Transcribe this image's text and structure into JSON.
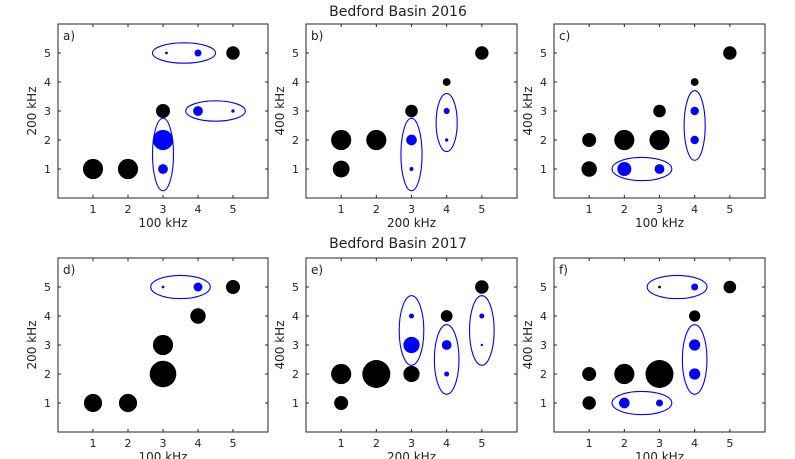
{
  "figure": {
    "titles": [
      "Bedford Basin 2016",
      "Bedford Basin 2017"
    ]
  },
  "chart_data": [
    {
      "type": "scatter",
      "panel": "a)",
      "title": "Bedford Basin 2016",
      "xlabel": "100 kHz",
      "ylabel": "200 kHz",
      "xlim": [
        0,
        6
      ],
      "ylim": [
        0,
        6
      ],
      "xticks": [
        1,
        2,
        3,
        4,
        5
      ],
      "yticks": [
        1,
        2,
        3,
        4,
        5
      ],
      "grid": false,
      "points": [
        {
          "x": 1,
          "y": 1,
          "size": 0.72,
          "color": "#000000"
        },
        {
          "x": 2,
          "y": 1,
          "size": 0.72,
          "color": "#000000"
        },
        {
          "x": 3,
          "y": 3,
          "size": 0.5,
          "color": "#000000"
        },
        {
          "x": 3,
          "y": 2,
          "size": 0.72,
          "color": "#0000ff"
        },
        {
          "x": 3,
          "y": 1,
          "size": 0.35,
          "color": "#0000ff"
        },
        {
          "x": 3.1,
          "y": 5,
          "size": 0.1,
          "color": "#0000ff"
        },
        {
          "x": 4,
          "y": 5,
          "size": 0.25,
          "color": "#0000ff"
        },
        {
          "x": 5,
          "y": 5,
          "size": 0.48,
          "color": "#000000"
        },
        {
          "x": 4,
          "y": 3,
          "size": 0.35,
          "color": "#0000ff"
        },
        {
          "x": 5,
          "y": 3,
          "size": 0.12,
          "color": "#0000ff"
        }
      ],
      "ellipses": [
        {
          "cx": 3,
          "cy": 1.5,
          "rx": 0.3,
          "ry": 1.25
        },
        {
          "cx": 3.6,
          "cy": 5,
          "rx": 0.9,
          "ry": 0.35
        },
        {
          "cx": 4.5,
          "cy": 3,
          "rx": 0.85,
          "ry": 0.35
        }
      ]
    },
    {
      "type": "scatter",
      "panel": "b)",
      "xlabel": "200 kHz",
      "ylabel": "400 kHz",
      "xlim": [
        0,
        6
      ],
      "ylim": [
        0,
        6
      ],
      "xticks": [
        1,
        2,
        3,
        4,
        5
      ],
      "yticks": [
        1,
        2,
        3,
        4,
        5
      ],
      "grid": false,
      "points": [
        {
          "x": 1,
          "y": 2,
          "size": 0.72,
          "color": "#000000"
        },
        {
          "x": 1,
          "y": 1,
          "size": 0.6,
          "color": "#000000"
        },
        {
          "x": 2,
          "y": 2,
          "size": 0.72,
          "color": "#000000"
        },
        {
          "x": 3,
          "y": 3,
          "size": 0.45,
          "color": "#000000"
        },
        {
          "x": 3,
          "y": 2,
          "size": 0.38,
          "color": "#0000ff"
        },
        {
          "x": 3,
          "y": 1,
          "size": 0.14,
          "color": "#0000ff"
        },
        {
          "x": 4,
          "y": 4,
          "size": 0.28,
          "color": "#000000"
        },
        {
          "x": 4,
          "y": 3,
          "size": 0.22,
          "color": "#0000ff"
        },
        {
          "x": 4,
          "y": 2,
          "size": 0.12,
          "color": "#0000ff"
        },
        {
          "x": 5,
          "y": 5,
          "size": 0.48,
          "color": "#000000"
        }
      ],
      "ellipses": [
        {
          "cx": 3,
          "cy": 1.5,
          "rx": 0.3,
          "ry": 1.25
        },
        {
          "cx": 4,
          "cy": 2.6,
          "rx": 0.3,
          "ry": 1.0
        }
      ]
    },
    {
      "type": "scatter",
      "panel": "c)",
      "xlabel": "100 kHz",
      "ylabel": "400 kHz",
      "xlim": [
        0,
        6
      ],
      "ylim": [
        0,
        6
      ],
      "xticks": [
        1,
        2,
        3,
        4,
        5
      ],
      "yticks": [
        1,
        2,
        3,
        4,
        5
      ],
      "grid": false,
      "points": [
        {
          "x": 1,
          "y": 2,
          "size": 0.5,
          "color": "#000000"
        },
        {
          "x": 1,
          "y": 1,
          "size": 0.55,
          "color": "#000000"
        },
        {
          "x": 2,
          "y": 2,
          "size": 0.72,
          "color": "#000000"
        },
        {
          "x": 2,
          "y": 1,
          "size": 0.5,
          "color": "#0000ff"
        },
        {
          "x": 3,
          "y": 3,
          "size": 0.45,
          "color": "#000000"
        },
        {
          "x": 3,
          "y": 2,
          "size": 0.72,
          "color": "#000000"
        },
        {
          "x": 3,
          "y": 1,
          "size": 0.35,
          "color": "#0000ff"
        },
        {
          "x": 4,
          "y": 4,
          "size": 0.28,
          "color": "#000000"
        },
        {
          "x": 4,
          "y": 3,
          "size": 0.3,
          "color": "#0000ff"
        },
        {
          "x": 4,
          "y": 2,
          "size": 0.3,
          "color": "#0000ff"
        },
        {
          "x": 5,
          "y": 5,
          "size": 0.48,
          "color": "#000000"
        }
      ],
      "ellipses": [
        {
          "cx": 2.5,
          "cy": 1,
          "rx": 0.85,
          "ry": 0.4
        },
        {
          "cx": 4,
          "cy": 2.5,
          "rx": 0.3,
          "ry": 1.2
        }
      ]
    },
    {
      "type": "scatter",
      "panel": "d)",
      "title": "Bedford Basin 2017",
      "xlabel": "100 kHz",
      "ylabel": "200 kHz",
      "xlim": [
        0,
        6
      ],
      "ylim": [
        0,
        6
      ],
      "xticks": [
        1,
        2,
        3,
        4,
        5
      ],
      "yticks": [
        1,
        2,
        3,
        4,
        5
      ],
      "grid": false,
      "points": [
        {
          "x": 1,
          "y": 1,
          "size": 0.65,
          "color": "#000000"
        },
        {
          "x": 2,
          "y": 1,
          "size": 0.65,
          "color": "#000000"
        },
        {
          "x": 3,
          "y": 3,
          "size": 0.72,
          "color": "#000000"
        },
        {
          "x": 3,
          "y": 2,
          "size": 0.95,
          "color": "#000000"
        },
        {
          "x": 4,
          "y": 4,
          "size": 0.55,
          "color": "#000000"
        },
        {
          "x": 3,
          "y": 5,
          "size": 0.1,
          "color": "#0000ff"
        },
        {
          "x": 4,
          "y": 5,
          "size": 0.32,
          "color": "#0000ff"
        },
        {
          "x": 5,
          "y": 5,
          "size": 0.5,
          "color": "#000000"
        }
      ],
      "ellipses": [
        {
          "cx": 3.5,
          "cy": 5,
          "rx": 0.85,
          "ry": 0.4
        }
      ]
    },
    {
      "type": "scatter",
      "panel": "e)",
      "xlabel": "200 kHz",
      "ylabel": "400 kHz",
      "xlim": [
        0,
        6
      ],
      "ylim": [
        0,
        6
      ],
      "xticks": [
        1,
        2,
        3,
        4,
        5
      ],
      "yticks": [
        1,
        2,
        3,
        4,
        5
      ],
      "grid": false,
      "points": [
        {
          "x": 1,
          "y": 2,
          "size": 0.72,
          "color": "#000000"
        },
        {
          "x": 1,
          "y": 1,
          "size": 0.5,
          "color": "#000000"
        },
        {
          "x": 2,
          "y": 2,
          "size": 1.0,
          "color": "#000000"
        },
        {
          "x": 3,
          "y": 2,
          "size": 0.58,
          "color": "#000000"
        },
        {
          "x": 3,
          "y": 4,
          "size": 0.18,
          "color": "#0000ff"
        },
        {
          "x": 3,
          "y": 3,
          "size": 0.58,
          "color": "#0000ff"
        },
        {
          "x": 4,
          "y": 4,
          "size": 0.42,
          "color": "#000000"
        },
        {
          "x": 4,
          "y": 3,
          "size": 0.35,
          "color": "#0000ff"
        },
        {
          "x": 4,
          "y": 2,
          "size": 0.18,
          "color": "#0000ff"
        },
        {
          "x": 5,
          "y": 5,
          "size": 0.48,
          "color": "#000000"
        },
        {
          "x": 5,
          "y": 4,
          "size": 0.18,
          "color": "#0000ff"
        },
        {
          "x": 5,
          "y": 3,
          "size": 0.08,
          "color": "#0000ff"
        }
      ],
      "ellipses": [
        {
          "cx": 3,
          "cy": 3.5,
          "rx": 0.35,
          "ry": 1.2
        },
        {
          "cx": 4,
          "cy": 2.5,
          "rx": 0.35,
          "ry": 1.2
        },
        {
          "cx": 5,
          "cy": 3.5,
          "rx": 0.35,
          "ry": 1.2
        }
      ]
    },
    {
      "type": "scatter",
      "panel": "f)",
      "xlabel": "100 kHz",
      "ylabel": "400 kHz",
      "xlim": [
        0,
        6
      ],
      "ylim": [
        0,
        6
      ],
      "xticks": [
        1,
        2,
        3,
        4,
        5
      ],
      "yticks": [
        1,
        2,
        3,
        4,
        5
      ],
      "grid": false,
      "points": [
        {
          "x": 1,
          "y": 2,
          "size": 0.5,
          "color": "#000000"
        },
        {
          "x": 1,
          "y": 1,
          "size": 0.48,
          "color": "#000000"
        },
        {
          "x": 2,
          "y": 2,
          "size": 0.72,
          "color": "#000000"
        },
        {
          "x": 2,
          "y": 1,
          "size": 0.38,
          "color": "#0000ff"
        },
        {
          "x": 3,
          "y": 2,
          "size": 1.0,
          "color": "#000000"
        },
        {
          "x": 3,
          "y": 1,
          "size": 0.25,
          "color": "#0000ff"
        },
        {
          "x": 3,
          "y": 5,
          "size": 0.1,
          "color": "#000000"
        },
        {
          "x": 4,
          "y": 5,
          "size": 0.25,
          "color": "#0000ff"
        },
        {
          "x": 5,
          "y": 5,
          "size": 0.45,
          "color": "#000000"
        },
        {
          "x": 4,
          "y": 4,
          "size": 0.4,
          "color": "#000000"
        },
        {
          "x": 4,
          "y": 3,
          "size": 0.4,
          "color": "#0000ff"
        },
        {
          "x": 4,
          "y": 2,
          "size": 0.4,
          "color": "#0000ff"
        }
      ],
      "ellipses": [
        {
          "cx": 2.5,
          "cy": 1,
          "rx": 0.85,
          "ry": 0.4
        },
        {
          "cx": 3.5,
          "cy": 5,
          "rx": 0.85,
          "ry": 0.4
        },
        {
          "cx": 4,
          "cy": 2.5,
          "rx": 0.35,
          "ry": 1.2
        }
      ]
    }
  ]
}
